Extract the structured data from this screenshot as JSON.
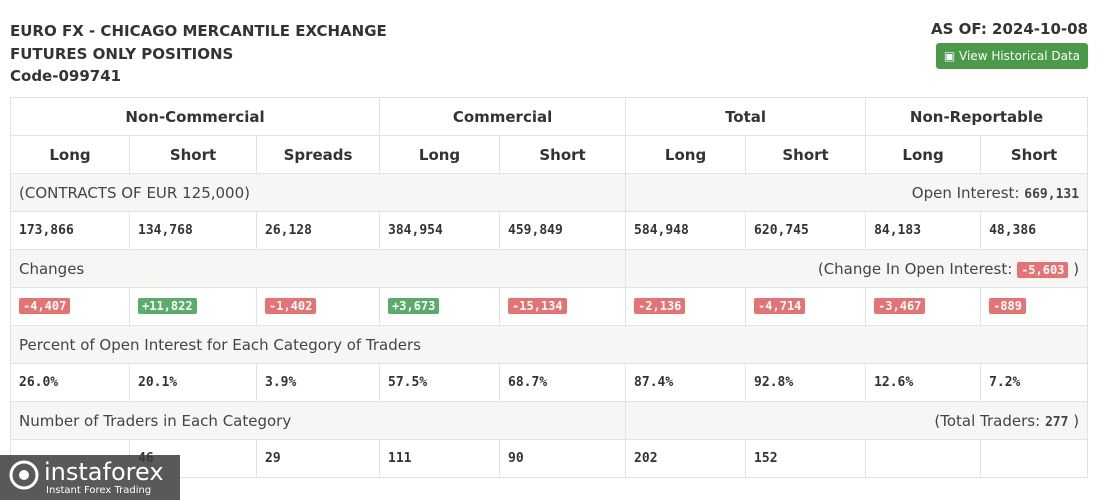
{
  "header": {
    "title_lines": [
      "EURO FX - CHICAGO MERCANTILE EXCHANGE",
      "FUTURES ONLY POSITIONS",
      "Code-099741"
    ],
    "as_of": "AS OF: 2024-10-08",
    "button": "View Historical Data"
  },
  "table": {
    "groups": [
      {
        "label": "Non-Commercial",
        "span": 3
      },
      {
        "label": "Commercial",
        "span": 2
      },
      {
        "label": "Total",
        "span": 2
      },
      {
        "label": "Non-Reportable",
        "span": 2
      }
    ],
    "columns": [
      "Long",
      "Short",
      "Spreads",
      "Long",
      "Short",
      "Long",
      "Short",
      "Long",
      "Short"
    ],
    "sections": [
      {
        "left": "(CONTRACTS OF EUR 125,000)",
        "right_prefix": "Open Interest:",
        "right_value": "669,131",
        "row": [
          "173,866",
          "134,768",
          "26,128",
          "384,954",
          "459,849",
          "584,948",
          "620,745",
          "84,183",
          "48,386"
        ]
      },
      {
        "left": "Changes",
        "right_prefix": "(Change In Open Interest:",
        "right_value": "-5,603",
        "right_suffix": ")",
        "badges": true,
        "row": [
          "-4,407",
          "+11,822",
          "-1,402",
          "+3,673",
          "-15,134",
          "-2,136",
          "-4,714",
          "-3,467",
          "-889"
        ]
      },
      {
        "left": "Percent of Open Interest for Each Category of Traders",
        "row": [
          "26.0%",
          "20.1%",
          "3.9%",
          "57.5%",
          "68.7%",
          "87.4%",
          "92.8%",
          "12.6%",
          "7.2%"
        ]
      },
      {
        "left": "Number of Traders in Each Category",
        "right_prefix": "(Total Traders:",
        "right_value": "277",
        "right_suffix": ")",
        "row": [
          null,
          "46",
          "29",
          "111",
          "90",
          "202",
          "152",
          null,
          null
        ]
      }
    ]
  },
  "watermark": {
    "brand": "instaforex",
    "tagline": "Instant Forex Trading"
  }
}
